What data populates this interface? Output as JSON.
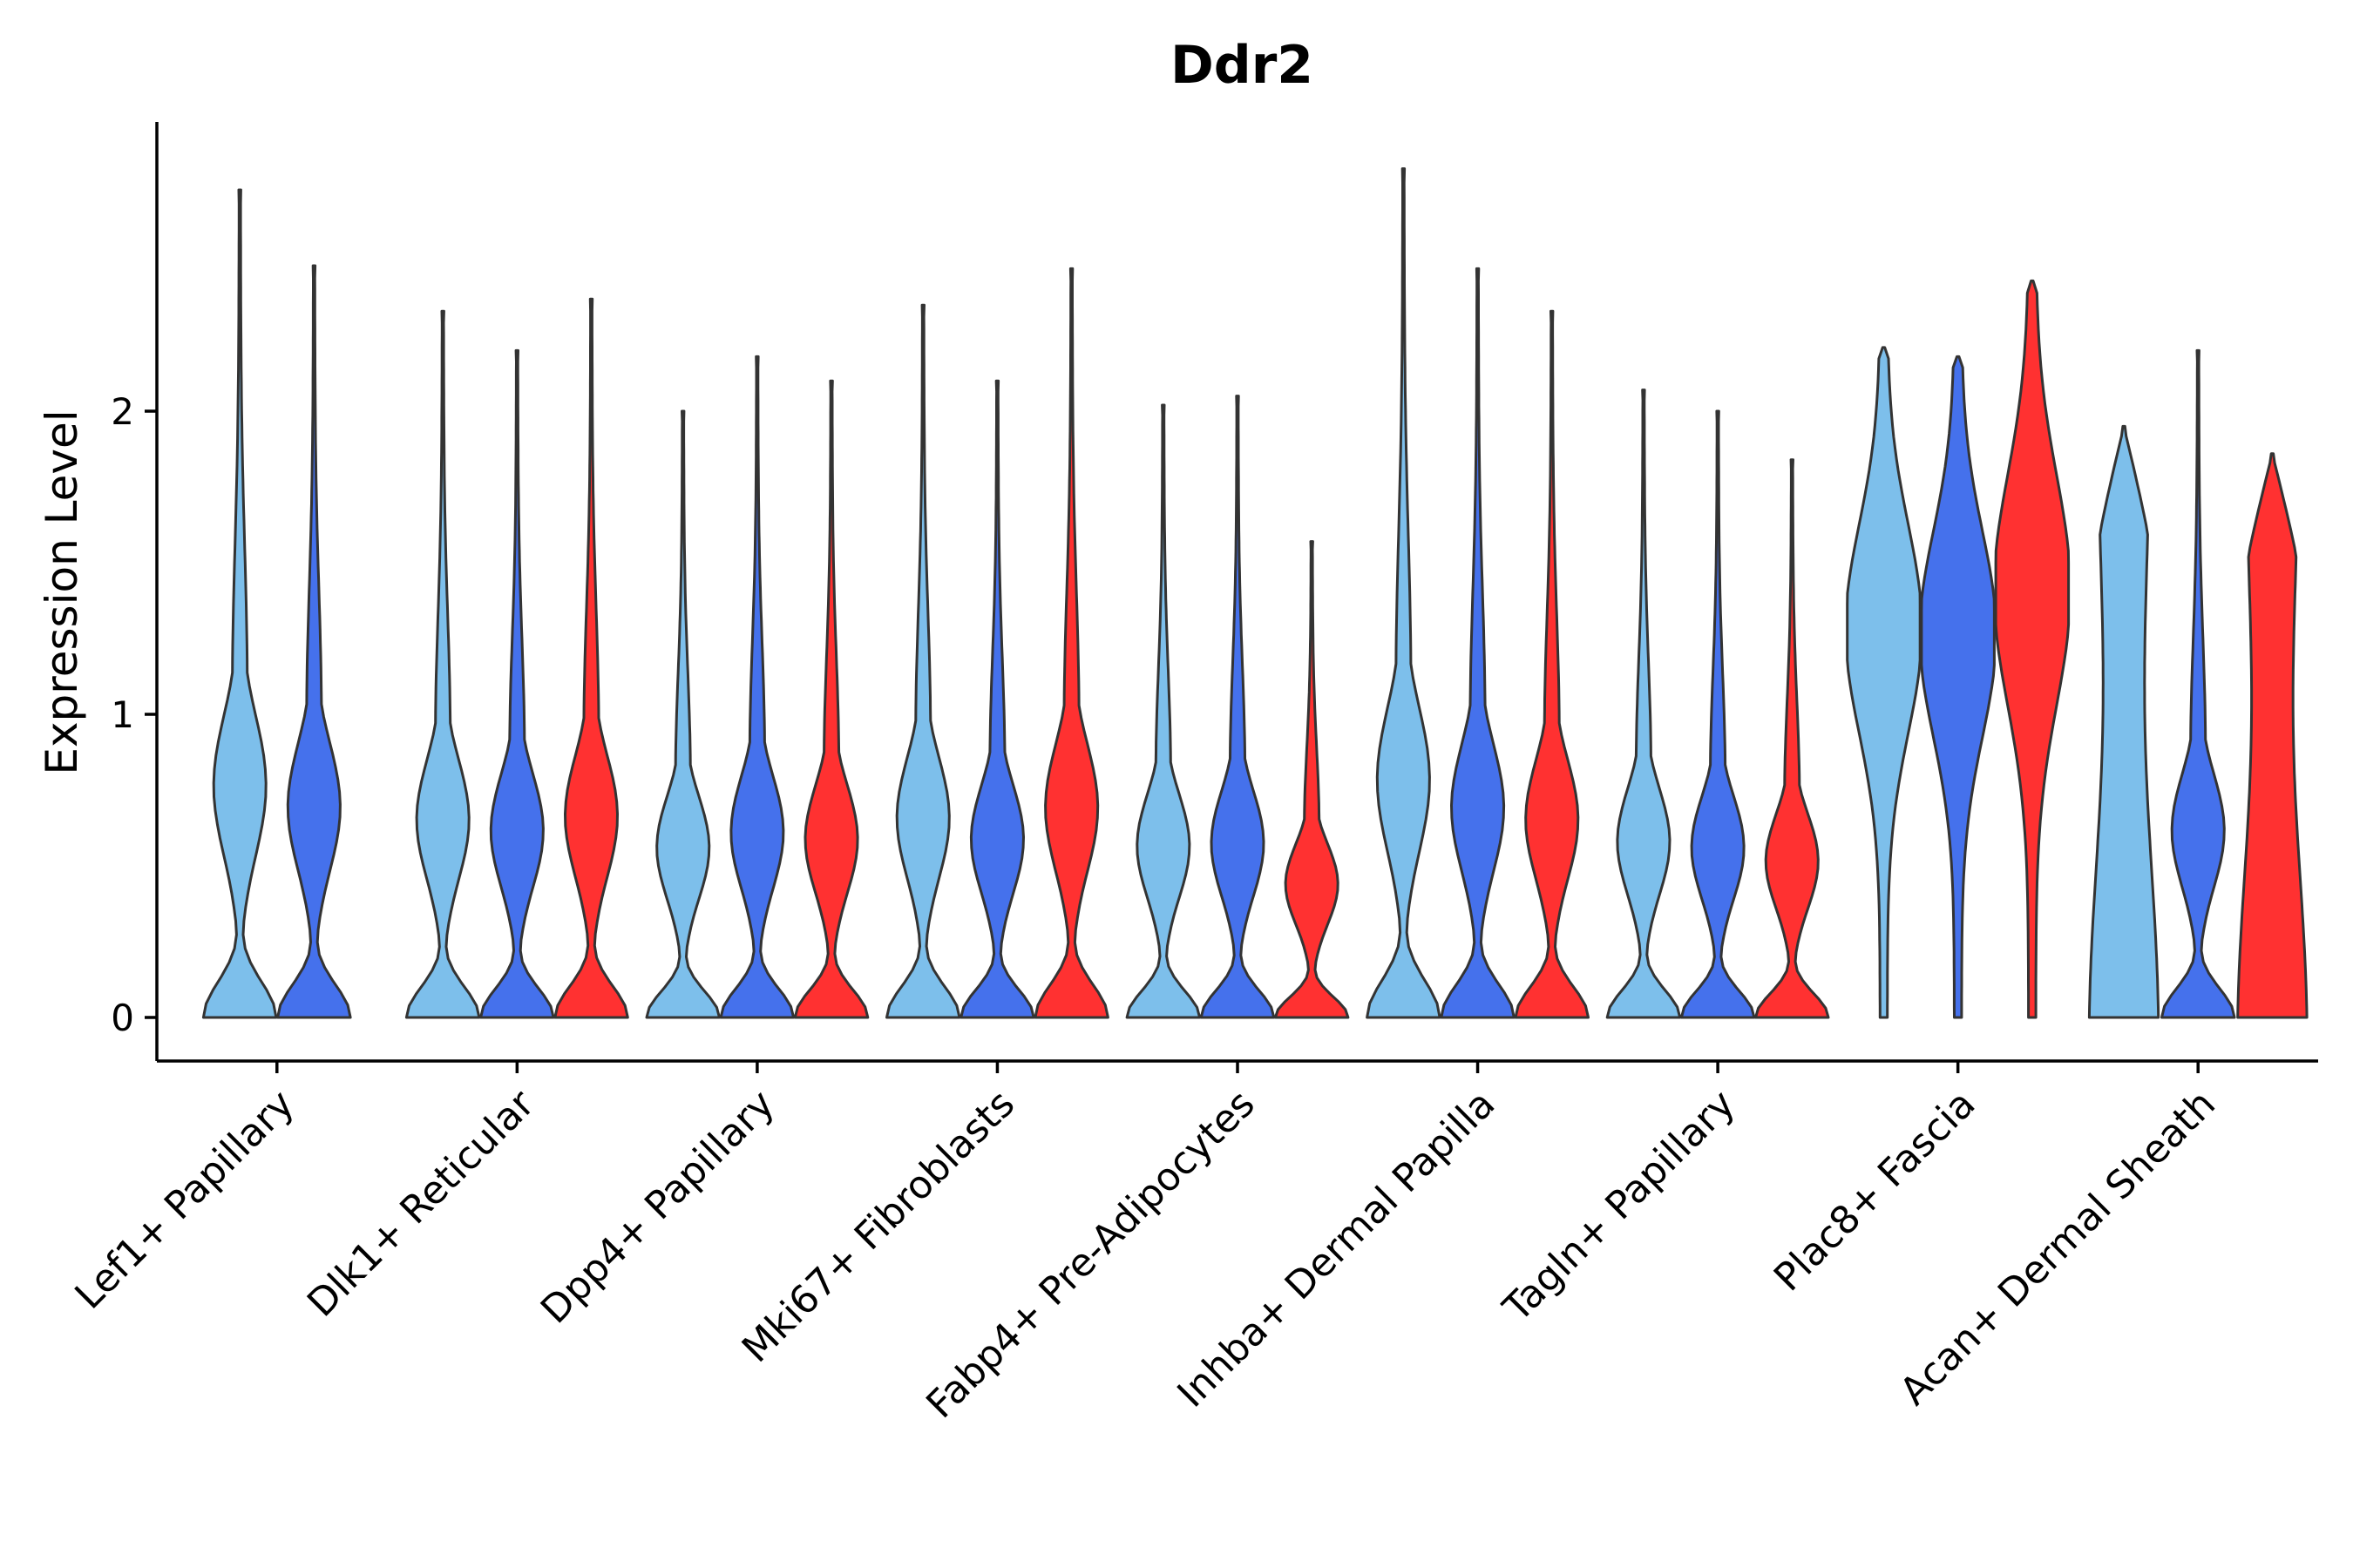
{
  "chart_data": {
    "type": "violin",
    "title": "Ddr2",
    "xlabel": "",
    "ylabel": "Expression Level",
    "ylim": [
      -0.14,
      2.95
    ],
    "yticks": [
      0,
      1,
      2
    ],
    "grid": false,
    "legend": "none",
    "group_colors": [
      "#7dbfeb",
      "#4571ec",
      "#ff3131"
    ],
    "categories": [
      {
        "label": "Lef1+ Papillary",
        "violins": [
          {
            "group": 0,
            "max": 2.73,
            "shape": "bimodal"
          },
          {
            "group": 1,
            "max": 2.48,
            "shape": "bimodal"
          }
        ]
      },
      {
        "label": "Dlk1+ Reticular",
        "violins": [
          {
            "group": 0,
            "max": 2.33,
            "shape": "bimodal"
          },
          {
            "group": 1,
            "max": 2.2,
            "shape": "bimodal"
          },
          {
            "group": 2,
            "max": 2.37,
            "shape": "bimodal"
          }
        ]
      },
      {
        "label": "Dpp4+ Papillary",
        "violins": [
          {
            "group": 0,
            "max": 2.0,
            "shape": "bimodal"
          },
          {
            "group": 1,
            "max": 2.18,
            "shape": "bimodal"
          },
          {
            "group": 2,
            "max": 2.1,
            "shape": "bimodal"
          }
        ]
      },
      {
        "label": "Mki67+ Fibroblasts",
        "violins": [
          {
            "group": 0,
            "max": 2.35,
            "shape": "bimodal"
          },
          {
            "group": 1,
            "max": 2.1,
            "shape": "bimodal"
          },
          {
            "group": 2,
            "max": 2.47,
            "shape": "bimodal"
          }
        ]
      },
      {
        "label": "Fabp4+ Pre-Adipocytes",
        "violins": [
          {
            "group": 0,
            "max": 2.02,
            "shape": "bimodal"
          },
          {
            "group": 1,
            "max": 2.05,
            "shape": "bimodal"
          },
          {
            "group": 2,
            "max": 1.57,
            "shape": "bimodal"
          }
        ]
      },
      {
        "label": "Inhba+ Dermal Papilla",
        "violins": [
          {
            "group": 0,
            "max": 2.8,
            "shape": "bimodal"
          },
          {
            "group": 1,
            "max": 2.47,
            "shape": "bimodal"
          },
          {
            "group": 2,
            "max": 2.33,
            "shape": "bimodal"
          }
        ]
      },
      {
        "label": "Tagln+ Papillary",
        "violins": [
          {
            "group": 0,
            "max": 2.07,
            "shape": "bimodal"
          },
          {
            "group": 1,
            "max": 2.0,
            "shape": "bimodal"
          },
          {
            "group": 2,
            "max": 1.84,
            "shape": "bimodal"
          }
        ]
      },
      {
        "label": "Plac8+ Fascia",
        "violins": [
          {
            "group": 0,
            "max": 2.21,
            "shape": "upper"
          },
          {
            "group": 1,
            "max": 2.18,
            "shape": "upper"
          },
          {
            "group": 2,
            "max": 2.43,
            "shape": "upper"
          }
        ]
      },
      {
        "label": "Acan+ Dermal Sheath",
        "violins": [
          {
            "group": 0,
            "max": 1.95,
            "shape": "flat"
          },
          {
            "group": 1,
            "max": 2.2,
            "shape": "bimodal"
          },
          {
            "group": 2,
            "max": 1.86,
            "shape": "flat"
          }
        ]
      }
    ]
  }
}
